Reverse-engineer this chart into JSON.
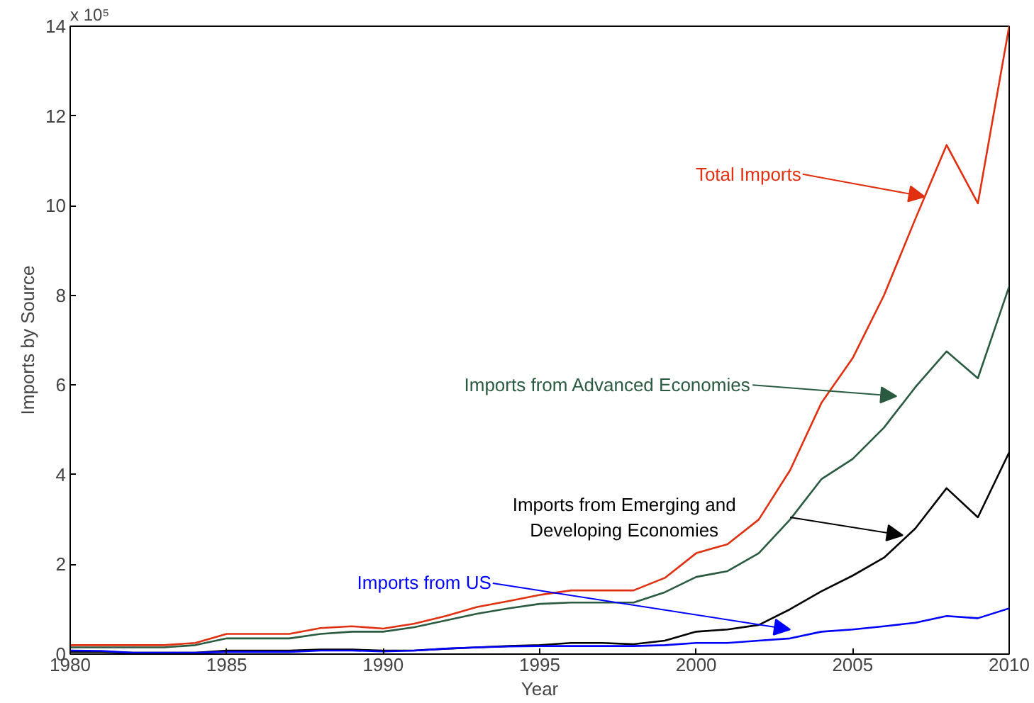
{
  "chart_data": {
    "type": "line",
    "xlabel": "Year",
    "ylabel": "Imports by Source",
    "annotations": [
      "x 10⁵"
    ],
    "x": [
      1980,
      1981,
      1982,
      1983,
      1984,
      1985,
      1986,
      1987,
      1988,
      1989,
      1990,
      1991,
      1992,
      1993,
      1994,
      1995,
      1996,
      1997,
      1998,
      1999,
      2000,
      2001,
      2002,
      2003,
      2004,
      2005,
      2006,
      2007,
      2008,
      2009,
      2010
    ],
    "xlim": [
      1980,
      2010
    ],
    "xticks": [
      1980,
      1985,
      1990,
      1995,
      2000,
      2005,
      2010
    ],
    "ylim": [
      0,
      14
    ],
    "yticks": [
      0,
      2,
      4,
      6,
      8,
      10,
      12,
      14
    ],
    "grid": false,
    "legend": false,
    "series": [
      {
        "name": "Total Imports",
        "color": "#e03010",
        "values": [
          0.2,
          0.2,
          0.2,
          0.2,
          0.25,
          0.45,
          0.45,
          0.45,
          0.58,
          0.62,
          0.57,
          0.68,
          0.85,
          1.05,
          1.18,
          1.32,
          1.42,
          1.42,
          1.42,
          1.7,
          2.25,
          2.45,
          3.0,
          4.1,
          5.6,
          6.6,
          8.0,
          9.7,
          11.35,
          10.05,
          14.0
        ]
      },
      {
        "name": "Imports from Advanced Economies",
        "color": "#2a5a40",
        "values": [
          0.15,
          0.15,
          0.15,
          0.15,
          0.2,
          0.35,
          0.35,
          0.35,
          0.45,
          0.5,
          0.5,
          0.6,
          0.75,
          0.9,
          1.02,
          1.12,
          1.15,
          1.15,
          1.15,
          1.38,
          1.72,
          1.85,
          2.25,
          3.0,
          3.9,
          4.35,
          5.05,
          5.95,
          6.75,
          6.15,
          8.2
        ]
      },
      {
        "name": "Imports from Emerging and\nDeveloping Economies",
        "color": "#000000",
        "values": [
          0.05,
          0.05,
          0.03,
          0.03,
          0.03,
          0.08,
          0.08,
          0.08,
          0.1,
          0.1,
          0.08,
          0.08,
          0.12,
          0.15,
          0.18,
          0.2,
          0.25,
          0.25,
          0.22,
          0.3,
          0.5,
          0.55,
          0.65,
          1.0,
          1.4,
          1.75,
          2.15,
          2.8,
          3.7,
          3.05,
          4.5
        ]
      },
      {
        "name": "Imports from US",
        "color": "#0000ff",
        "values": [
          0.08,
          0.07,
          0.03,
          0.03,
          0.03,
          0.05,
          0.05,
          0.05,
          0.08,
          0.08,
          0.06,
          0.08,
          0.12,
          0.15,
          0.17,
          0.18,
          0.18,
          0.18,
          0.18,
          0.2,
          0.25,
          0.25,
          0.3,
          0.35,
          0.5,
          0.55,
          0.62,
          0.7,
          0.85,
          0.8,
          1.02
        ]
      }
    ]
  }
}
